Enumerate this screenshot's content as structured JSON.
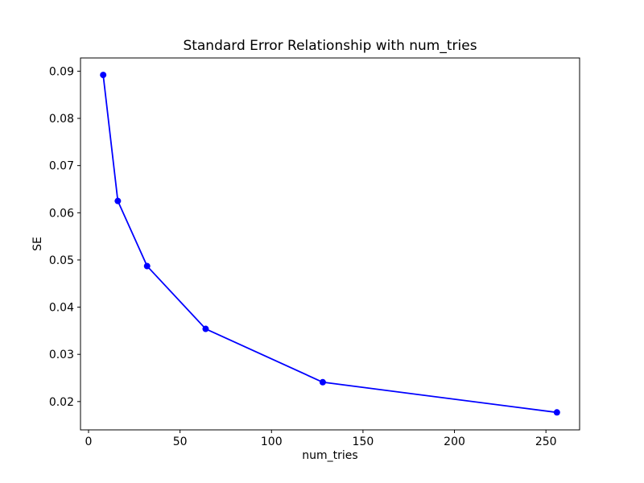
{
  "chart_data": {
    "type": "line",
    "title": "Standard Error Relationship with num_tries",
    "xlabel": "num_tries",
    "ylabel": "SE",
    "series": [
      {
        "name": "SE",
        "x": [
          8,
          16,
          32,
          64,
          128,
          256
        ],
        "y": [
          0.0892,
          0.0625,
          0.0487,
          0.0354,
          0.0241,
          0.0177
        ]
      }
    ],
    "line_color": "#0000ff",
    "marker": "circle",
    "marker_color": "#0000ff",
    "xlim": [
      -4.4,
      268.4
    ],
    "ylim": [
      0.014,
      0.0928
    ],
    "xticks": {
      "values": [
        0,
        50,
        100,
        150,
        200,
        250
      ],
      "labels": [
        "0",
        "50",
        "100",
        "150",
        "200",
        "250"
      ]
    },
    "yticks": {
      "values": [
        0.02,
        0.03,
        0.04,
        0.05,
        0.06,
        0.07,
        0.08,
        0.09
      ],
      "labels": [
        "0.02",
        "0.03",
        "0.04",
        "0.05",
        "0.06",
        "0.07",
        "0.08",
        "0.09"
      ]
    },
    "grid": false,
    "legend": null,
    "text_color": "#000000",
    "spine_color": "#000000",
    "background": "#ffffff"
  }
}
